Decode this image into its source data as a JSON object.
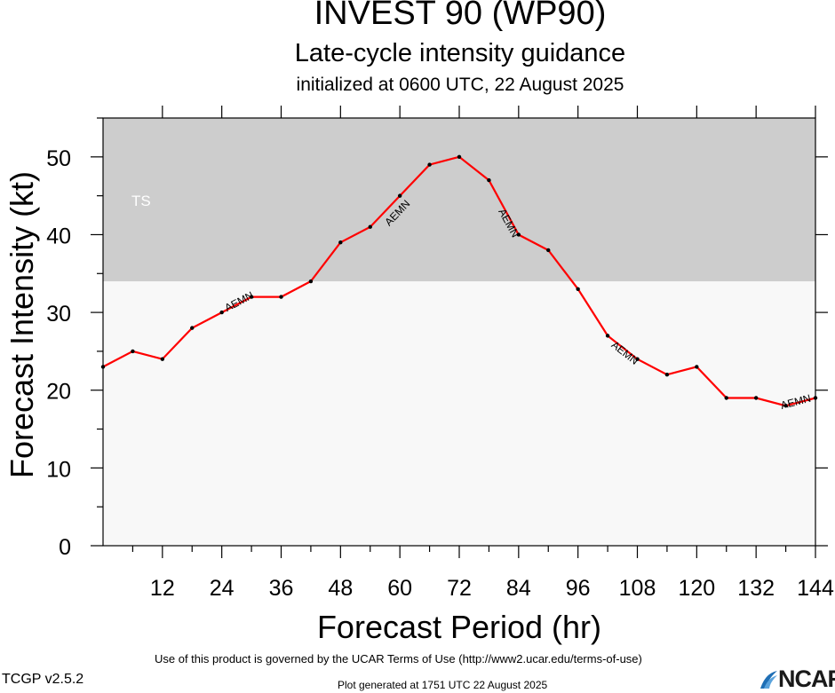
{
  "chart_data": {
    "type": "line",
    "title": "INVEST 90 (WP90)",
    "subtitle": "Late-cycle intensity guidance",
    "init_line": "initialized at 0600 UTC, 22 August 2025",
    "xlabel": "Forecast Period (hr)",
    "ylabel": "Forecast Intensity (kt)",
    "xlim": [
      0,
      144
    ],
    "ylim": [
      0,
      55
    ],
    "x_ticks": [
      12,
      24,
      36,
      48,
      60,
      72,
      84,
      96,
      108,
      120,
      132,
      144
    ],
    "y_ticks": [
      0,
      10,
      20,
      30,
      40,
      50
    ],
    "shaded_regions": [
      {
        "label": "TS",
        "from": 34,
        "to": 55,
        "color": "#cdcdcd"
      }
    ],
    "below_region_color": "#f8f8f8",
    "series": [
      {
        "name": "AEMN",
        "color": "#ff0000",
        "x": [
          0,
          6,
          12,
          18,
          24,
          30,
          36,
          42,
          48,
          54,
          60,
          66,
          72,
          78,
          84,
          90,
          96,
          102,
          108,
          114,
          120,
          126,
          132,
          138,
          144
        ],
        "values": [
          23,
          25,
          24,
          28,
          30,
          32,
          32,
          34,
          39,
          41,
          45,
          49,
          50,
          47,
          40,
          38,
          33,
          27,
          24,
          22,
          23,
          19,
          19,
          18,
          19
        ],
        "label_positions": [
          {
            "x": 27.5,
            "y": 31.4
          },
          {
            "x": 59.5,
            "y": 42.8
          },
          {
            "x": 82.0,
            "y": 41.5
          },
          {
            "x": 105.5,
            "y": 24.8
          },
          {
            "x": 140.0,
            "y": 18.5
          }
        ]
      }
    ]
  },
  "footer": {
    "terms": "Use of this product is governed by the UCAR Terms of Use (http://www2.ucar.edu/terms-of-use)",
    "version": "TCGP v2.5.2",
    "generated": "Plot generated at 1751 UTC   22 August 2025",
    "logo_text": "NCAR"
  }
}
